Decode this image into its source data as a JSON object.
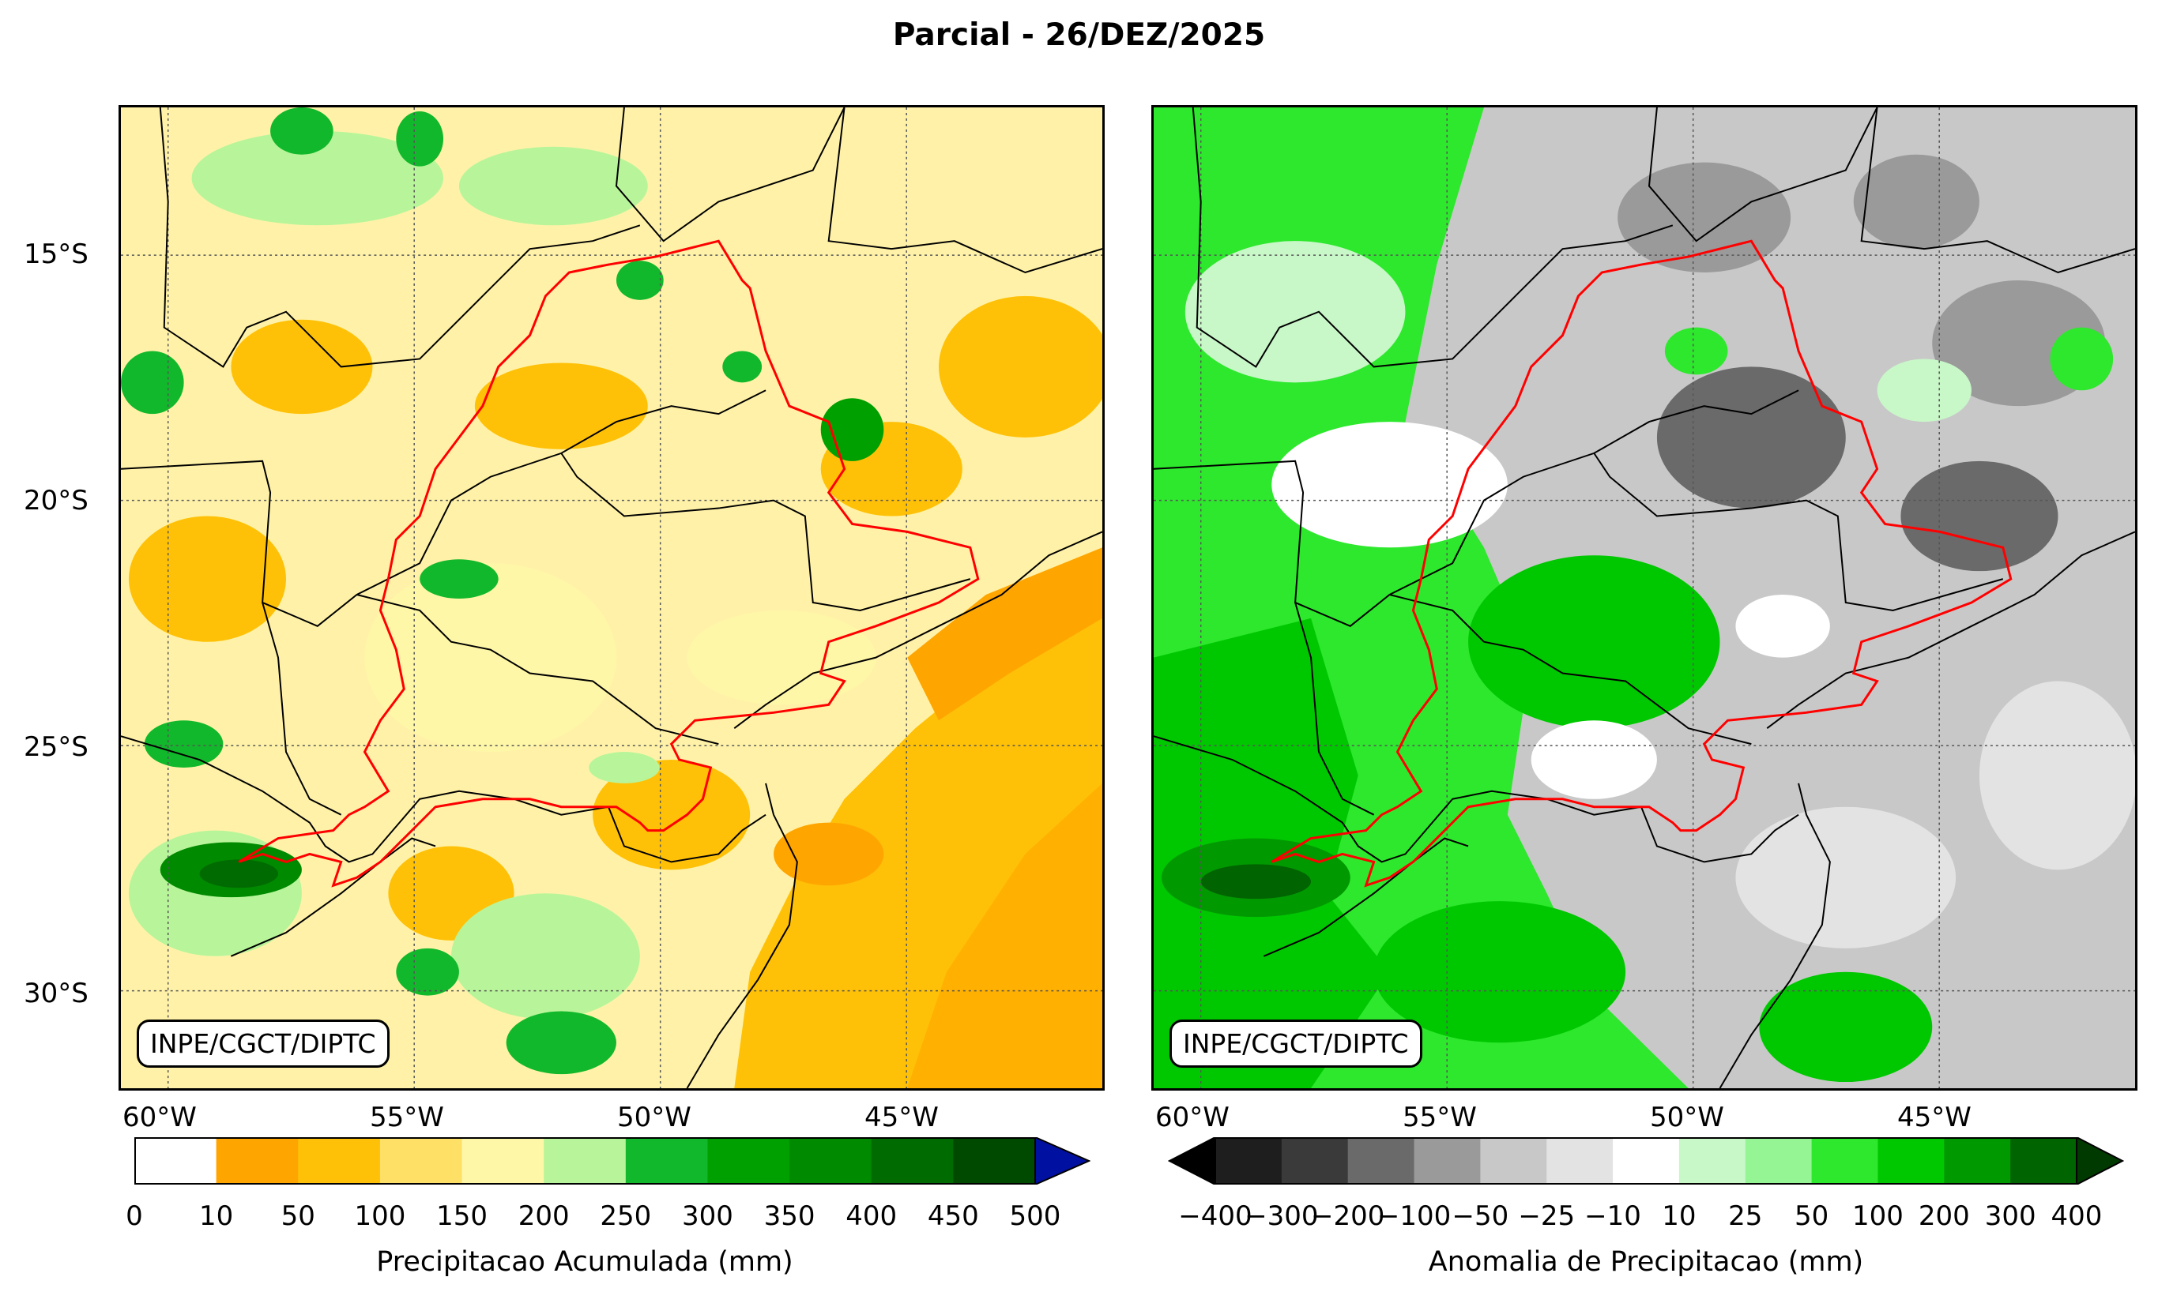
{
  "title": "Parcial - 26/DEZ/2025",
  "lat_labels": [
    "15°S",
    "20°S",
    "25°S",
    "30°S"
  ],
  "lon_labels": [
    "60°W",
    "55°W",
    "50°W",
    "45°W"
  ],
  "credit": "INPE/CGCT/DIPTC",
  "left_panel": {
    "colorbar_label": "Precipitacao Acumulada (mm)",
    "ticks": [
      "0",
      "10",
      "50",
      "100",
      "150",
      "200",
      "250",
      "300",
      "350",
      "400",
      "450",
      "500"
    ],
    "colors": [
      "#ffffff",
      "#ffa500",
      "#ffc107",
      "#ffe066",
      "#fff7a8",
      "#b8f59a",
      "#12b82b",
      "#00a000",
      "#008a00",
      "#006b00",
      "#004a00",
      "#0010a0"
    ],
    "extend": "max"
  },
  "right_panel": {
    "colorbar_label": "Anomalia de Precipitacao (mm)",
    "ticks": [
      "−400",
      "−300",
      "−200",
      "−100",
      "−50",
      "−25",
      "−10",
      "10",
      "25",
      "50",
      "100",
      "200",
      "300",
      "400"
    ],
    "colors": [
      "#000000",
      "#1e1e1e",
      "#3a3a3a",
      "#6a6a6a",
      "#9a9a9a",
      "#c8c8c8",
      "#e3e3e3",
      "#ffffff",
      "#c8f7c8",
      "#95f595",
      "#2de82d",
      "#00c800",
      "#009a00",
      "#006400",
      "#003a00"
    ],
    "extend": "both"
  }
}
